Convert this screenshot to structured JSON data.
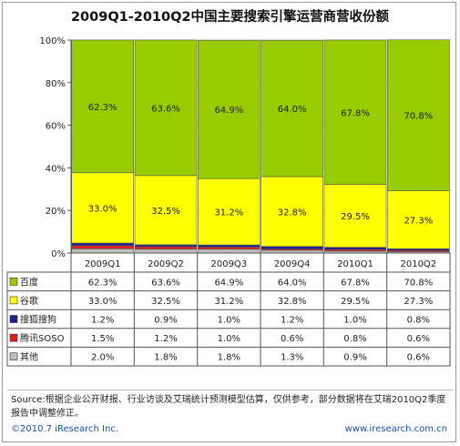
{
  "title": "2009Q1-2010Q2中国主要搜索引擎运营商营收份额",
  "chart_data": {
    "type": "bar",
    "stacked": true,
    "percent": true,
    "categories": [
      "2009Q1",
      "2009Q2",
      "2009Q3",
      "2009Q4",
      "2010Q1",
      "2010Q2"
    ],
    "y_ticks": [
      "0%",
      "20%",
      "40%",
      "60%",
      "80%",
      "100%"
    ],
    "ylim": [
      0,
      100
    ],
    "series": [
      {
        "name": "其他",
        "color": "#bdbdbd",
        "values": [
          2.0,
          1.8,
          1.8,
          1.3,
          0.9,
          0.6
        ]
      },
      {
        "name": "腾讯SOSO",
        "color": "#e0201c",
        "values": [
          1.5,
          1.2,
          1.0,
          0.6,
          0.8,
          0.6
        ]
      },
      {
        "name": "搜狐搜狗",
        "color": "#1c1c94",
        "values": [
          1.2,
          0.9,
          1.0,
          1.2,
          1.0,
          0.8
        ]
      },
      {
        "name": "谷歌",
        "color": "#ffff00",
        "values": [
          33.0,
          32.5,
          31.2,
          32.8,
          29.5,
          27.3
        ]
      },
      {
        "name": "百度",
        "color": "#99cc00",
        "values": [
          62.3,
          63.6,
          64.9,
          64.0,
          67.8,
          70.8
        ]
      }
    ],
    "bar_labels": {
      "百度": [
        "62.3%",
        "63.6%",
        "64.9%",
        "64.0%",
        "67.8%",
        "70.8%"
      ],
      "谷歌": [
        "33.0%",
        "32.5%",
        "31.2%",
        "32.8%",
        "29.5%",
        "27.3%"
      ]
    },
    "table": {
      "header": [
        "2009Q1",
        "2009Q2",
        "2009Q3",
        "2009Q4",
        "2010Q1",
        "2010Q2"
      ],
      "rows": [
        {
          "name": "百度",
          "color": "#99cc00",
          "cells": [
            "62.3%",
            "63.6%",
            "64.9%",
            "64.0%",
            "67.8%",
            "70.8%"
          ]
        },
        {
          "name": "谷歌",
          "color": "#ffff00",
          "cells": [
            "33.0%",
            "32.5%",
            "31.2%",
            "32.8%",
            "29.5%",
            "27.3%"
          ]
        },
        {
          "name": "搜狐搜狗",
          "color": "#1c1c94",
          "cells": [
            "1.2%",
            "0.9%",
            "1.0%",
            "1.2%",
            "1.0%",
            "0.8%"
          ]
        },
        {
          "name": "腾讯SOSO",
          "color": "#e0201c",
          "cells": [
            "1.5%",
            "1.2%",
            "1.0%",
            "0.6%",
            "0.8%",
            "0.6%"
          ]
        },
        {
          "name": "其他",
          "color": "#bdbdbd",
          "cells": [
            "2.0%",
            "1.8%",
            "1.8%",
            "1.3%",
            "0.9%",
            "0.6%"
          ]
        }
      ]
    },
    "grid": true
  },
  "source": "Source:根据企业公开财报、行业访谈及艾瑞统计预测模型估算，仅供参考，部分数据将在艾瑞2010Q2季度报告中调整修正。",
  "copyright": "©2010.7 iResearch Inc.",
  "website": "www.iresearch.com.cn"
}
